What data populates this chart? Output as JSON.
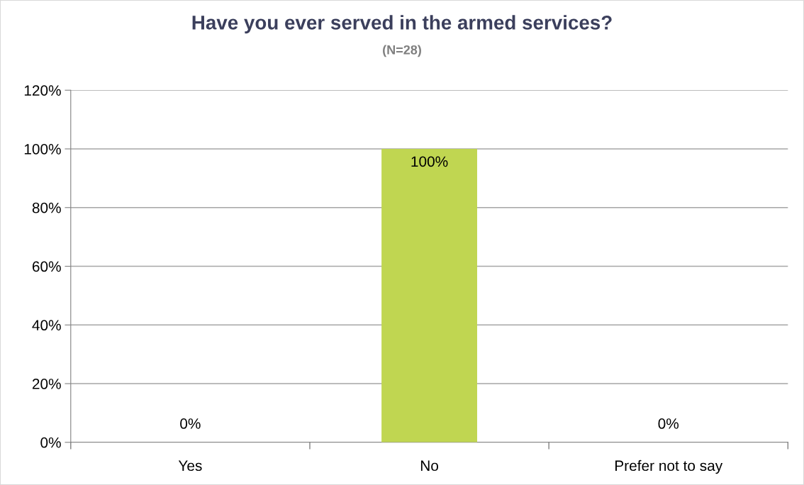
{
  "chart_data": {
    "type": "bar",
    "title": "Have you ever served in the armed services?",
    "subtitle": "(N=28)",
    "categories": [
      "Yes",
      "No",
      "Prefer not to say"
    ],
    "values": [
      0,
      100,
      0
    ],
    "value_labels": [
      "0%",
      "100%",
      "0%"
    ],
    "color": "#c0d651",
    "ylim": [
      0,
      120
    ],
    "yticks": [
      {
        "value": 0,
        "label": "0%"
      },
      {
        "value": 20,
        "label": "20%"
      },
      {
        "value": 40,
        "label": "40%"
      },
      {
        "value": 60,
        "label": "60%"
      },
      {
        "value": 80,
        "label": "80%"
      },
      {
        "value": 100,
        "label": "100%"
      },
      {
        "value": 120,
        "label": "120%"
      }
    ],
    "grid": "y",
    "legend": false
  }
}
